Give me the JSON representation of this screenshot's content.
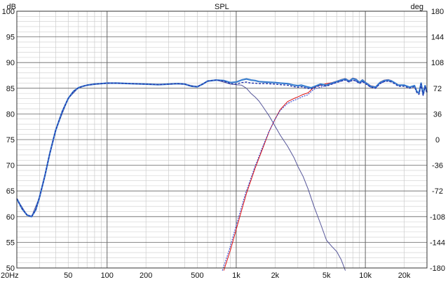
{
  "chart_data": {
    "type": "line",
    "title": "SPL",
    "left_unit": "dB",
    "right_unit": "deg",
    "xscale": "log",
    "xlim": [
      20,
      30000
    ],
    "ylim": [
      50,
      100
    ],
    "y2lim": [
      -180,
      180
    ],
    "grid": true,
    "x_ticks": [
      {
        "value": 20,
        "label": "20Hz"
      },
      {
        "value": 50,
        "label": "50"
      },
      {
        "value": 100,
        "label": "100"
      },
      {
        "value": 200,
        "label": "200"
      },
      {
        "value": 500,
        "label": "500"
      },
      {
        "value": 1000,
        "label": "1k"
      },
      {
        "value": 2000,
        "label": "2k"
      },
      {
        "value": 5000,
        "label": "5k"
      },
      {
        "value": 10000,
        "label": "10k"
      },
      {
        "value": 20000,
        "label": "20k"
      }
    ],
    "y_ticks": [
      50,
      55,
      60,
      65,
      70,
      75,
      80,
      85,
      90,
      95,
      100
    ],
    "y2_ticks": [
      -180,
      -144,
      -108,
      -72,
      -36,
      0,
      36,
      72,
      108,
      144,
      180
    ],
    "colors": {
      "grid_major": "#666666",
      "grid_minor": "#cccccc",
      "sum_measured": "#3a7fd0",
      "sum_sim": "#2233aa",
      "tweeter_red": "#dd1111",
      "tweeter_blue": "#2233cc",
      "woofer": "#555599"
    },
    "series": [
      {
        "key": "sum_measured",
        "x": [
          20,
          22,
          24,
          26,
          28,
          30,
          33,
          36,
          40,
          45,
          50,
          55,
          60,
          65,
          70,
          80,
          90,
          100,
          120,
          150,
          200,
          250,
          300,
          350,
          400,
          450,
          500,
          550,
          600,
          700,
          800,
          900,
          1000,
          1100,
          1200,
          1300,
          1400,
          1500,
          1700,
          2000,
          2200,
          2500,
          2800,
          3000,
          3200,
          3500,
          3800,
          4000,
          4500,
          5000,
          5500,
          6000,
          6500,
          7000,
          7500,
          8000,
          8500,
          9000,
          9500,
          10000,
          11000,
          12000,
          13000,
          14000,
          15000,
          16000,
          17000,
          18000,
          20000,
          22000,
          24000,
          25000,
          26000,
          27000,
          28000,
          29000,
          30000
        ],
        "y": [
          63.5,
          61.5,
          60.3,
          60.0,
          61.3,
          63.8,
          68.0,
          72.3,
          76.8,
          80.5,
          83.0,
          84.4,
          85.1,
          85.4,
          85.6,
          85.8,
          85.9,
          86.0,
          86.0,
          85.9,
          85.8,
          85.7,
          85.8,
          85.9,
          85.8,
          85.4,
          85.3,
          85.8,
          86.4,
          86.6,
          86.5,
          86.1,
          86.2,
          86.6,
          86.8,
          86.6,
          86.5,
          86.3,
          86.2,
          86.1,
          86.0,
          85.9,
          85.6,
          85.5,
          85.6,
          85.3,
          85.1,
          85.3,
          85.8,
          85.6,
          86.0,
          86.3,
          86.6,
          86.8,
          86.4,
          86.9,
          86.7,
          86.1,
          86.6,
          86.1,
          85.4,
          85.2,
          86.1,
          86.5,
          86.6,
          86.4,
          86.0,
          85.6,
          85.6,
          85.2,
          85.5,
          84.4,
          84.0,
          86.0,
          83.8,
          85.5,
          84.2
        ]
      },
      {
        "key": "sum_sim",
        "x": [
          20,
          22,
          24,
          26,
          28,
          30,
          33,
          36,
          40,
          45,
          50,
          55,
          60,
          65,
          70,
          80,
          90,
          100,
          120,
          150,
          200,
          250,
          300,
          350,
          400,
          450,
          500,
          550,
          600,
          700,
          800,
          900,
          1000,
          1100,
          1200,
          1300,
          1400,
          1500,
          1700,
          2000,
          2200,
          2500,
          2800,
          3000,
          3200,
          3500,
          3800,
          4000,
          4500,
          5000,
          5500,
          6000,
          6500,
          7000,
          7500,
          8000,
          8500,
          9000,
          9500,
          10000,
          11000,
          12000,
          13000,
          14000,
          15000,
          16000,
          17000,
          18000,
          20000,
          22000,
          24000,
          25000,
          26000,
          27000,
          28000,
          29000,
          30000
        ],
        "y": [
          63.5,
          61.5,
          60.3,
          60.0,
          61.3,
          63.8,
          68.0,
          72.3,
          76.8,
          80.5,
          83.0,
          84.4,
          85.1,
          85.4,
          85.6,
          85.8,
          85.9,
          86.0,
          86.0,
          85.9,
          85.8,
          85.7,
          85.8,
          85.9,
          85.8,
          85.4,
          85.3,
          85.8,
          86.4,
          86.6,
          86.4,
          85.9,
          85.8,
          86.1,
          86.2,
          86.0,
          86.0,
          85.9,
          85.9,
          85.8,
          85.7,
          85.6,
          85.3,
          85.2,
          85.3,
          85.0,
          84.9,
          85.1,
          85.6,
          85.4,
          85.8,
          86.1,
          86.4,
          86.6,
          86.2,
          86.6,
          86.4,
          85.9,
          86.3,
          85.9,
          85.2,
          85.0,
          85.9,
          86.3,
          86.4,
          86.2,
          85.8,
          85.4,
          85.4,
          85.0,
          85.3,
          84.2,
          83.8,
          85.8,
          83.6,
          85.3,
          84.0
        ]
      },
      {
        "key": "woofer",
        "x": [
          20,
          24,
          26,
          30,
          40,
          50,
          60,
          70,
          100,
          200,
          300,
          400,
          500,
          600,
          700,
          800,
          900,
          1000,
          1100,
          1200,
          1300,
          1400,
          1500,
          1600,
          1800,
          2000,
          2200,
          2500,
          2800,
          3000,
          3300,
          3600,
          4000,
          4500,
          5000,
          5500,
          6000,
          6500,
          7000
        ],
        "y": [
          63.5,
          60.3,
          60.0,
          63.8,
          76.8,
          83.0,
          85.1,
          85.6,
          86.0,
          85.8,
          85.8,
          85.8,
          85.3,
          86.4,
          86.6,
          86.2,
          85.8,
          85.7,
          85.6,
          85.0,
          84.0,
          83.3,
          82.5,
          81.5,
          79.6,
          77.6,
          75.8,
          73.7,
          71.5,
          69.8,
          67.8,
          65.4,
          62.0,
          58.6,
          55.4,
          54.2,
          53.2,
          51.6,
          49.5
        ]
      },
      {
        "key": "tweeter_red",
        "x": [
          800,
          900,
          1000,
          1100,
          1200,
          1400,
          1600,
          1800,
          2000,
          2200,
          2500,
          2800,
          3000,
          3300,
          3600,
          4000,
          4500,
          5000,
          5500,
          6000,
          6500,
          7000,
          7500,
          8000,
          8500,
          9000,
          9500,
          10000,
          11000,
          12000,
          13000,
          14000,
          15000,
          16000
        ],
        "y": [
          49.5,
          53.4,
          57.5,
          61.2,
          64.5,
          69.4,
          73.2,
          76.6,
          79.0,
          80.9,
          82.4,
          83.0,
          83.3,
          83.8,
          84.1,
          85.2,
          85.6,
          85.9,
          86.1,
          86.4,
          86.7,
          86.9,
          86.5,
          87.0,
          86.8,
          86.2,
          86.7,
          86.2,
          85.5,
          85.3,
          86.2,
          86.6,
          86.7,
          86.5
        ]
      },
      {
        "key": "tweeter_blue",
        "x": [
          780,
          880,
          980,
          1080,
          1180,
          1380,
          1580,
          1780,
          1980,
          2180,
          2480,
          2780,
          2980,
          3280,
          3580,
          3980,
          4480,
          4980,
          5480,
          5980,
          6480,
          6980,
          7480,
          7980,
          8480,
          8980,
          9480,
          9980,
          10980,
          11980,
          12980,
          13980,
          14980,
          15980
        ],
        "y": [
          49.5,
          53.4,
          57.5,
          61.2,
          64.5,
          69.4,
          73.2,
          76.4,
          78.8,
          80.6,
          82.0,
          82.6,
          82.9,
          83.4,
          83.7,
          84.8,
          85.2,
          85.5,
          85.8,
          86.1,
          86.4,
          86.6,
          86.2,
          86.6,
          86.4,
          85.9,
          86.3,
          85.9,
          85.2,
          85.0,
          85.9,
          86.3,
          86.4,
          86.2
        ]
      }
    ]
  }
}
